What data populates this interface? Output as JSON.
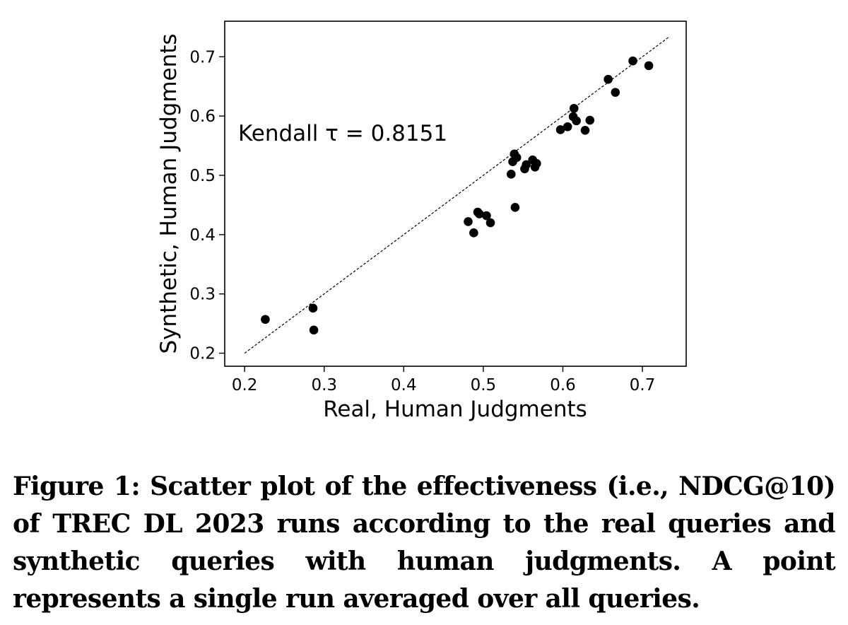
{
  "chart_data": {
    "type": "scatter",
    "xlabel": "Real, Human Judgments",
    "ylabel": "Synthetic, Human Judgments",
    "xlim": [
      0.175,
      0.755
    ],
    "ylim": [
      0.178,
      0.76
    ],
    "xticks": [
      "0.2",
      "0.3",
      "0.4",
      "0.5",
      "0.6",
      "0.7"
    ],
    "yticks": [
      "0.2",
      "0.3",
      "0.4",
      "0.5",
      "0.6",
      "0.7"
    ],
    "xtick_values": [
      0.2,
      0.3,
      0.4,
      0.5,
      0.6,
      0.7
    ],
    "ytick_values": [
      0.2,
      0.3,
      0.4,
      0.5,
      0.6,
      0.7
    ],
    "annotation": "Kendall τ = 0.8151",
    "reference_line": {
      "from": [
        0.2,
        0.2
      ],
      "to": [
        0.733,
        0.733
      ]
    },
    "grid": false,
    "point_color": "#000000",
    "points": [
      [
        0.226,
        0.257
      ],
      [
        0.286,
        0.276
      ],
      [
        0.287,
        0.239
      ],
      [
        0.481,
        0.422
      ],
      [
        0.488,
        0.403
      ],
      [
        0.493,
        0.438
      ],
      [
        0.495,
        0.435
      ],
      [
        0.504,
        0.432
      ],
      [
        0.509,
        0.42
      ],
      [
        0.535,
        0.502
      ],
      [
        0.537,
        0.523
      ],
      [
        0.539,
        0.536
      ],
      [
        0.54,
        0.446
      ],
      [
        0.542,
        0.53
      ],
      [
        0.552,
        0.511
      ],
      [
        0.554,
        0.518
      ],
      [
        0.562,
        0.526
      ],
      [
        0.565,
        0.514
      ],
      [
        0.567,
        0.52
      ],
      [
        0.597,
        0.577
      ],
      [
        0.606,
        0.582
      ],
      [
        0.613,
        0.599
      ],
      [
        0.614,
        0.613
      ],
      [
        0.617,
        0.592
      ],
      [
        0.628,
        0.576
      ],
      [
        0.634,
        0.593
      ],
      [
        0.657,
        0.662
      ],
      [
        0.666,
        0.64
      ],
      [
        0.688,
        0.693
      ],
      [
        0.708,
        0.685
      ]
    ]
  },
  "caption": "Figure 1: Scatter plot of the effectiveness (i.e., NDCG@10) of TREC DL 2023 runs according to the real queries and synthetic queries with human judgments. A point represents a single run averaged over all queries."
}
